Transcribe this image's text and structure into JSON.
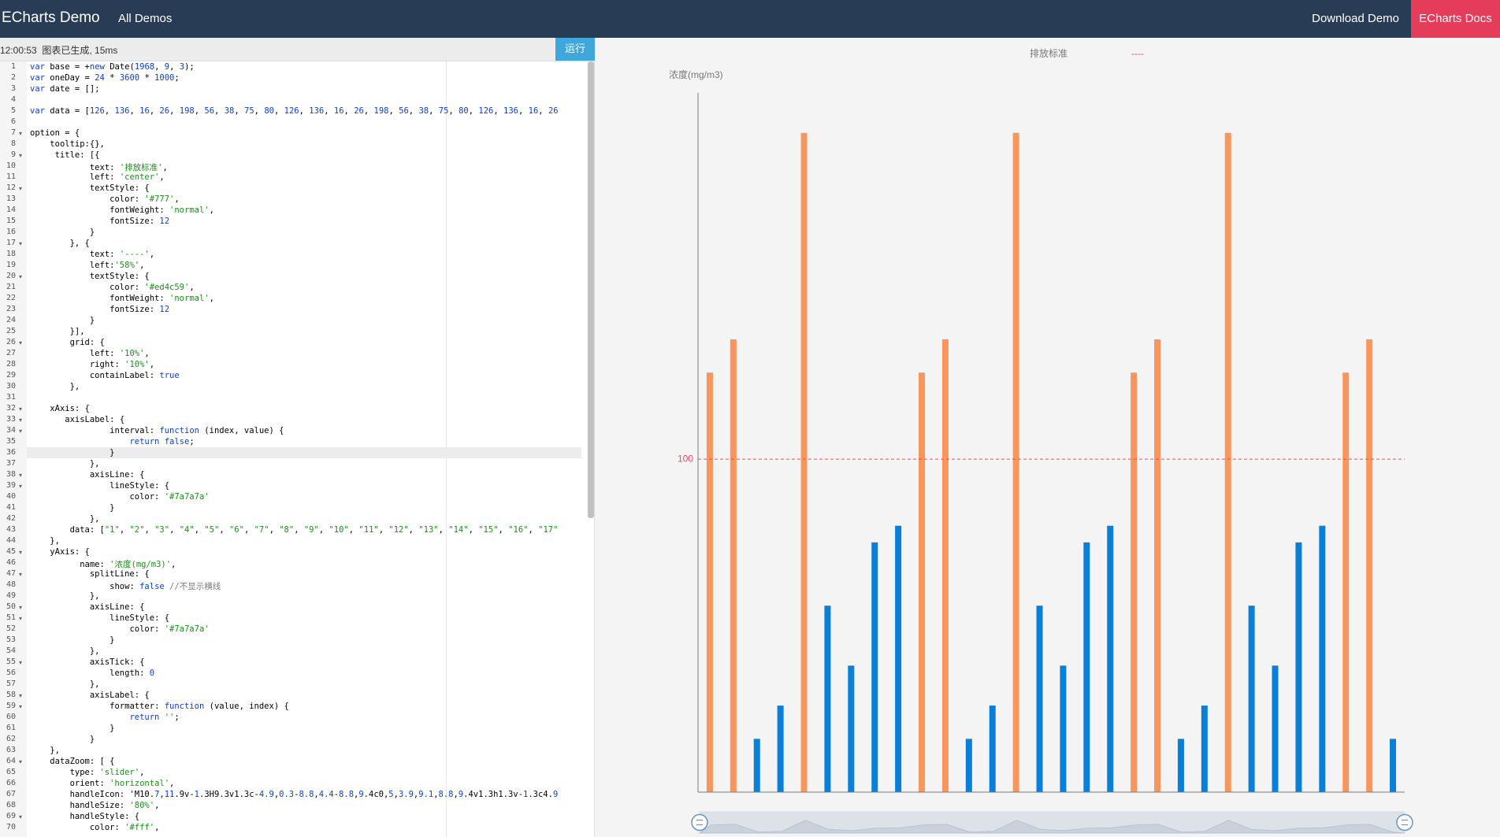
{
  "header": {
    "brand": "ECharts Demo",
    "nav": "All Demos",
    "download": "Download Demo",
    "docs": "ECharts Docs"
  },
  "editor": {
    "status": "12:00:53  图表已生成, 15ms",
    "run": "运行",
    "line_numbers": [
      1,
      2,
      3,
      4,
      5,
      6,
      7,
      8,
      9,
      10,
      11,
      12,
      13,
      14,
      15,
      16,
      17,
      18,
      19,
      20,
      21,
      22,
      23,
      24,
      25,
      26,
      27,
      28,
      29,
      30,
      31,
      32,
      33,
      34,
      35,
      36,
      37,
      38,
      39,
      40,
      41,
      42,
      43,
      44,
      45,
      46,
      47,
      48,
      49,
      50,
      51,
      52,
      53,
      54,
      55,
      56,
      57,
      58,
      59,
      60,
      61,
      62,
      63,
      64,
      65,
      66,
      67,
      68,
      69,
      70
    ],
    "lines": [
      "var base = +new Date(1968, 9, 3);",
      "var oneDay = 24 * 3600 * 1000;",
      "var date = [];",
      "",
      "var data = [126, 136, 16, 26, 198, 56, 38, 75, 80, 126, 136, 16, 26, 198, 56, 38, 75, 80, 126, 136, 16, 26",
      "",
      "option = {",
      "    tooltip:{},",
      "     title: [{",
      "            text: '排放标准',",
      "            left: 'center',",
      "            textStyle: {",
      "                color: '#777',",
      "                fontWeight: 'normal',",
      "                fontSize: 12",
      "            }",
      "        }, {",
      "            text: '----',",
      "            left:'58%',",
      "            textStyle: {",
      "                color: '#ed4c59',",
      "                fontWeight: 'normal',",
      "                fontSize: 12",
      "            }",
      "        }],",
      "        grid: {",
      "            left: '10%',",
      "            right: '10%',",
      "            containLabel: true",
      "        },",
      "",
      "    xAxis: {",
      "       axisLabel: {",
      "                interval: function (index, value) {",
      "                    return false;",
      "                }",
      "            },",
      "            axisLine: {",
      "                lineStyle: {",
      "                    color: '#7a7a7a'",
      "                }",
      "            },",
      "        data: [\"1\", \"2\", \"3\", \"4\", \"5\", \"6\", \"7\", \"8\", \"9\", \"10\", \"11\", \"12\", \"13\", \"14\", \"15\", \"16\", \"17\"",
      "    },",
      "    yAxis: {",
      "          name: '浓度(mg/m3)',",
      "            splitLine: {",
      "                show: false //不显示横线",
      "            },",
      "            axisLine: {",
      "                lineStyle: {",
      "                    color: '#7a7a7a'",
      "                }",
      "            },",
      "            axisTick: {",
      "                length: 0",
      "            },",
      "            axisLabel: {",
      "                formatter: function (value, index) {",
      "                    return '';",
      "                }",
      "            }",
      "    },",
      "    dataZoom: [ {",
      "        type: 'slider',",
      "        orient: 'horizontal',",
      "        handleIcon: 'M10.7,11.9v-1.3H9.3v1.3c-4.9,0.3-8.8,4.4-8.8,9.4c0,5,3.9,9.1,8.8,9.4v1.3h1.3v-1.3c4.9",
      "        handleSize: '80%',",
      "        handleStyle: {",
      "            color: '#fff',"
    ]
  },
  "chart_data": {
    "type": "bar",
    "title": "排放标准",
    "title_color": "#777",
    "subtitle": "----",
    "subtitle_color": "#ed4c59",
    "y_label": "浓度(mg/m3)",
    "values": [
      126,
      136,
      16,
      26,
      198,
      56,
      38,
      75,
      80,
      126,
      136,
      16,
      26,
      198,
      56,
      38,
      75,
      80,
      126,
      136,
      16,
      26,
      198,
      56,
      38,
      75,
      80,
      126,
      136,
      16
    ],
    "colors": [
      "#f9965d",
      "#f9965d",
      "#0a7fd8",
      "#0a7fd8",
      "#f9965d",
      "#0a7fd8",
      "#0a7fd8",
      "#0a7fd8",
      "#0a7fd8",
      "#f9965d",
      "#f9965d",
      "#0a7fd8",
      "#0a7fd8",
      "#f9965d",
      "#0a7fd8",
      "#0a7fd8",
      "#0a7fd8",
      "#0a7fd8",
      "#f9965d",
      "#f9965d",
      "#0a7fd8",
      "#0a7fd8",
      "#f9965d",
      "#0a7fd8",
      "#0a7fd8",
      "#0a7fd8",
      "#0a7fd8",
      "#f9965d",
      "#f9965d",
      "#0a7fd8"
    ],
    "ylim": [
      0,
      210
    ],
    "markline": {
      "value": 100,
      "color": "#ed4c59"
    }
  }
}
